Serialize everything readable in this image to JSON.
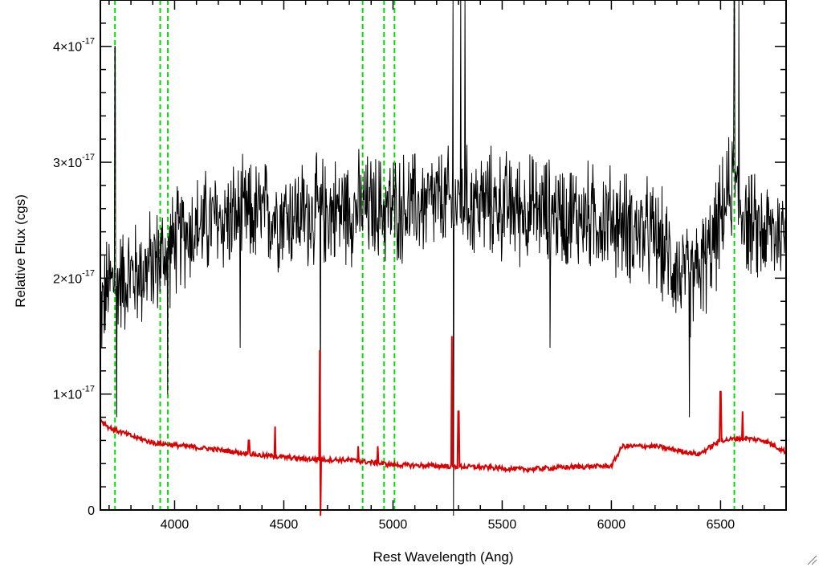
{
  "chart_data": {
    "type": "line",
    "title": "",
    "xlabel": "Rest Wavelength (Ang)",
    "ylabel": "Relative Flux (cgs)",
    "xlim": [
      3660,
      6800
    ],
    "ylim": [
      0,
      4.4
    ],
    "y_exponent_label": "-17",
    "x_ticks": [
      4000,
      4500,
      5000,
      5500,
      6000,
      6500
    ],
    "x_tick_labels": [
      "4000",
      "4500",
      "5000",
      "5500",
      "6000",
      "6500"
    ],
    "y_ticks": [
      0,
      1,
      2,
      3,
      4
    ],
    "y_tick_labels": [
      {
        "mantissa": "0",
        "exponent": ""
      },
      {
        "mantissa": "1×10",
        "exponent": "-17"
      },
      {
        "mantissa": "2×10",
        "exponent": "-17"
      },
      {
        "mantissa": "3×10",
        "exponent": "-17"
      },
      {
        "mantissa": "4×10",
        "exponent": "-17"
      }
    ],
    "grid": false,
    "line_markers": {
      "color": "#00e000",
      "style": "dashed",
      "x": [
        3727,
        3934,
        3969,
        4861,
        4959,
        5007,
        6563
      ]
    },
    "series": [
      {
        "role": "spectrum",
        "color": "#000000",
        "continuum": {
          "x": [
            3660,
            3700,
            3760,
            3850,
            3950,
            4050,
            4200,
            4400,
            4600,
            4800,
            5000,
            5200,
            5400,
            5600,
            5800,
            6000,
            6200,
            6350,
            6450,
            6550,
            6650,
            6800
          ],
          "y": [
            1.7,
            1.95,
            2.0,
            2.05,
            2.2,
            2.4,
            2.5,
            2.55,
            2.55,
            2.6,
            2.6,
            2.65,
            2.65,
            2.6,
            2.55,
            2.5,
            2.35,
            1.95,
            2.2,
            2.8,
            2.4,
            2.4
          ]
        },
        "noise_amplitude": 0.38,
        "features": [
          {
            "x": 3727,
            "y": 4.0
          },
          {
            "x": 3735,
            "y": 0.8
          },
          {
            "x": 3968,
            "y": 1.0
          },
          {
            "x": 4300,
            "y": 1.4
          },
          {
            "x": 4667,
            "y": 0.6
          },
          {
            "x": 5274,
            "y": 4.4
          },
          {
            "x": 5277,
            "y": -0.1
          },
          {
            "x": 5310,
            "y": 4.4
          },
          {
            "x": 5330,
            "y": 4.4
          },
          {
            "x": 5720,
            "y": 1.4
          },
          {
            "x": 6357,
            "y": 0.8
          },
          {
            "x": 6563,
            "y": 4.4
          },
          {
            "x": 6583,
            "y": 4.4
          }
        ]
      },
      {
        "role": "error",
        "color": "#dd0000",
        "continuum": {
          "x": [
            3660,
            3700,
            3800,
            3900,
            4000,
            4200,
            4400,
            4600,
            4800,
            5000,
            5200,
            5400,
            5600,
            5800,
            6000,
            6050,
            6200,
            6400,
            6500,
            6600,
            6700,
            6800
          ],
          "y": [
            0.78,
            0.71,
            0.64,
            0.58,
            0.56,
            0.52,
            0.47,
            0.44,
            0.43,
            0.39,
            0.38,
            0.37,
            0.35,
            0.37,
            0.38,
            0.55,
            0.55,
            0.48,
            0.6,
            0.62,
            0.6,
            0.5
          ]
        },
        "noise_amplitude": 0.02,
        "features": [
          {
            "x": 4340,
            "y": 0.6
          },
          {
            "x": 4460,
            "y": 0.72
          },
          {
            "x": 4665,
            "y": 1.38
          },
          {
            "x": 4668,
            "y": -0.05
          },
          {
            "x": 4840,
            "y": 0.55
          },
          {
            "x": 4930,
            "y": 0.55
          },
          {
            "x": 5270,
            "y": 1.5
          },
          {
            "x": 5300,
            "y": 0.85
          },
          {
            "x": 6500,
            "y": 1.02
          },
          {
            "x": 6600,
            "y": 0.85
          }
        ]
      }
    ]
  }
}
